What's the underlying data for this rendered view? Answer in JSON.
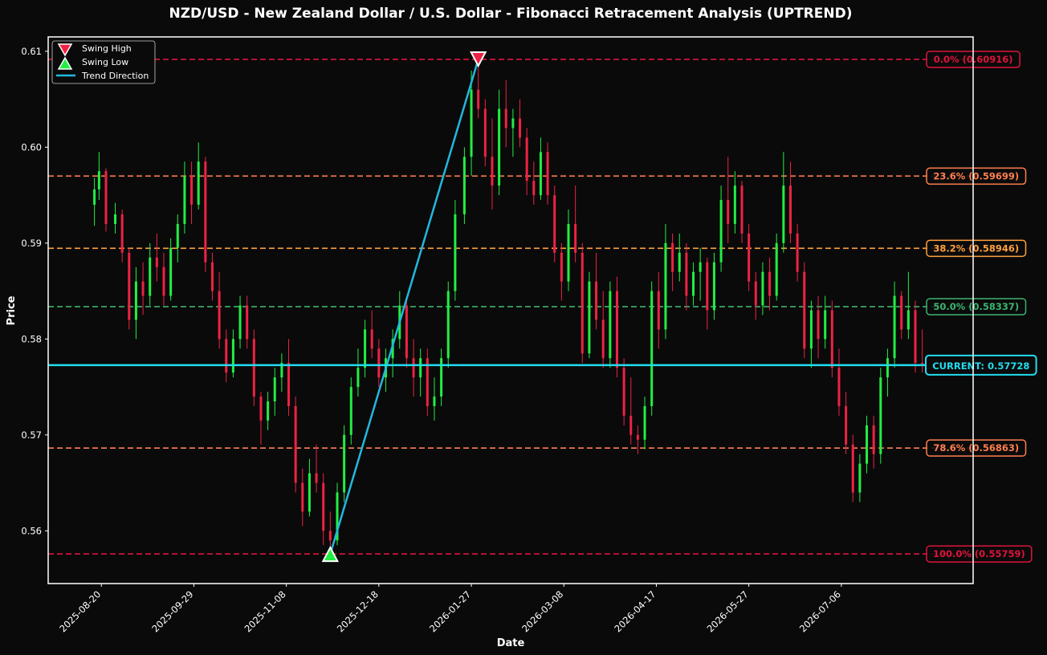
{
  "chart_data": {
    "type": "candlestick",
    "title": "NZD/USD - New Zealand Dollar / U.S. Dollar - Fibonacci Retracement Analysis (UPTREND)",
    "xlabel": "Date",
    "ylabel": "Price",
    "ylim": [
      0.5545,
      0.6115
    ],
    "xlim": [
      "2025-07-28",
      "2026-09-01"
    ],
    "y_ticks": [
      0.56,
      0.57,
      0.58,
      0.59,
      0.6,
      0.61
    ],
    "x_ticks": [
      "2025-08-20",
      "2025-09-29",
      "2025-11-08",
      "2025-12-18",
      "2026-01-27",
      "2026-03-08",
      "2026-04-17",
      "2026-05-27",
      "2026-07-06"
    ],
    "colors": {
      "up": "#22ee44",
      "down": "#ee2244",
      "trend": "#22b8dd",
      "current": "#22ddee",
      "background": "#0a0a0a",
      "frame": "#ffffff"
    },
    "fib_levels": [
      {
        "label": "0.0% (0.60916)",
        "value": 0.60916,
        "color": "#dc143c"
      },
      {
        "label": "23.6% (0.59699)",
        "value": 0.59699,
        "color": "#ff7f50"
      },
      {
        "label": "38.2% (0.58946)",
        "value": 0.58946,
        "color": "#ffa040"
      },
      {
        "label": "50.0% (0.58337)",
        "value": 0.58337,
        "color": "#3cb371"
      },
      {
        "label": "78.6% (0.56863)",
        "value": 0.56863,
        "color": "#ff7f50"
      },
      {
        "label": "100.0% (0.55759)",
        "value": 0.55759,
        "color": "#dc143c"
      }
    ],
    "current": {
      "label": "CURRENT: 0.57728",
      "value": 0.57728
    },
    "swing_high": {
      "date": "2026-01-30",
      "value": 0.60916
    },
    "swing_low": {
      "date": "2025-11-27",
      "value": 0.55759
    },
    "legend": {
      "position": "top-left",
      "items": [
        {
          "label": "Swing High",
          "marker": "triangle-down"
        },
        {
          "label": "Swing Low",
          "marker": "triangle-up"
        },
        {
          "label": "Trend Direction",
          "marker": "line"
        }
      ]
    },
    "ohlc": [
      [
        "2025-08-17",
        0.594,
        0.5968,
        0.5918,
        0.5956
      ],
      [
        "2025-08-19",
        0.5956,
        0.5995,
        0.5945,
        0.5975
      ],
      [
        "2025-08-22",
        0.5975,
        0.5978,
        0.5912,
        0.592
      ],
      [
        "2025-08-26",
        0.592,
        0.5942,
        0.591,
        0.593
      ],
      [
        "2025-08-29",
        0.593,
        0.5935,
        0.588,
        0.589
      ],
      [
        "2025-09-01",
        0.589,
        0.5895,
        0.581,
        0.582
      ],
      [
        "2025-09-04",
        0.582,
        0.5875,
        0.58,
        0.586
      ],
      [
        "2025-09-07",
        0.586,
        0.588,
        0.5825,
        0.5845
      ],
      [
        "2025-09-10",
        0.5845,
        0.59,
        0.5835,
        0.5885
      ],
      [
        "2025-09-13",
        0.5885,
        0.591,
        0.586,
        0.5875
      ],
      [
        "2025-09-16",
        0.5875,
        0.589,
        0.5835,
        0.5845
      ],
      [
        "2025-09-19",
        0.5845,
        0.5905,
        0.584,
        0.5895
      ],
      [
        "2025-09-22",
        0.5895,
        0.593,
        0.588,
        0.592
      ],
      [
        "2025-09-25",
        0.592,
        0.5985,
        0.591,
        0.597
      ],
      [
        "2025-09-28",
        0.597,
        0.5985,
        0.592,
        0.594
      ],
      [
        "2025-10-01",
        0.594,
        0.6005,
        0.5935,
        0.5985
      ],
      [
        "2025-10-04",
        0.5985,
        0.599,
        0.587,
        0.588
      ],
      [
        "2025-10-07",
        0.588,
        0.589,
        0.584,
        0.585
      ],
      [
        "2025-10-10",
        0.585,
        0.587,
        0.579,
        0.58
      ],
      [
        "2025-10-13",
        0.58,
        0.581,
        0.5755,
        0.5765
      ],
      [
        "2025-10-16",
        0.5765,
        0.581,
        0.576,
        0.58
      ],
      [
        "2025-10-19",
        0.58,
        0.5845,
        0.579,
        0.5835
      ],
      [
        "2025-10-22",
        0.5835,
        0.5845,
        0.579,
        0.58
      ],
      [
        "2025-10-25",
        0.58,
        0.581,
        0.573,
        0.574
      ],
      [
        "2025-10-28",
        0.574,
        0.5745,
        0.569,
        0.5715
      ],
      [
        "2025-10-31",
        0.5715,
        0.5745,
        0.5705,
        0.5735
      ],
      [
        "2025-11-03",
        0.5735,
        0.577,
        0.572,
        0.576
      ],
      [
        "2025-11-06",
        0.576,
        0.5785,
        0.5745,
        0.5775
      ],
      [
        "2025-11-09",
        0.5775,
        0.58,
        0.572,
        0.573
      ],
      [
        "2025-11-12",
        0.573,
        0.574,
        0.564,
        0.565
      ],
      [
        "2025-11-15",
        0.565,
        0.5665,
        0.5605,
        0.562
      ],
      [
        "2025-11-18",
        0.562,
        0.5675,
        0.5615,
        0.566
      ],
      [
        "2025-11-21",
        0.566,
        0.569,
        0.564,
        0.565
      ],
      [
        "2025-11-24",
        0.565,
        0.566,
        0.5585,
        0.56
      ],
      [
        "2025-11-27",
        0.56,
        0.562,
        0.5576,
        0.559
      ],
      [
        "2025-11-30",
        0.559,
        0.565,
        0.5585,
        0.564
      ],
      [
        "2025-12-03",
        0.564,
        0.571,
        0.563,
        0.57
      ],
      [
        "2025-12-06",
        0.57,
        0.576,
        0.569,
        0.575
      ],
      [
        "2025-12-09",
        0.575,
        0.579,
        0.574,
        0.577
      ],
      [
        "2025-12-12",
        0.577,
        0.582,
        0.576,
        0.581
      ],
      [
        "2025-12-15",
        0.581,
        0.583,
        0.578,
        0.579
      ],
      [
        "2025-12-18",
        0.579,
        0.58,
        0.575,
        0.576
      ],
      [
        "2025-12-21",
        0.576,
        0.579,
        0.5745,
        0.578
      ],
      [
        "2025-12-24",
        0.578,
        0.581,
        0.576,
        0.58
      ],
      [
        "2025-12-27",
        0.58,
        0.585,
        0.579,
        0.5835
      ],
      [
        "2025-12-30",
        0.5835,
        0.584,
        0.577,
        0.578
      ],
      [
        "2026-01-02",
        0.578,
        0.58,
        0.574,
        0.576
      ],
      [
        "2026-01-05",
        0.576,
        0.579,
        0.574,
        0.578
      ],
      [
        "2026-01-08",
        0.578,
        0.579,
        0.572,
        0.573
      ],
      [
        "2026-01-11",
        0.573,
        0.576,
        0.5715,
        0.574
      ],
      [
        "2026-01-14",
        0.574,
        0.579,
        0.573,
        0.578
      ],
      [
        "2026-01-17",
        0.578,
        0.586,
        0.577,
        0.585
      ],
      [
        "2026-01-20",
        0.585,
        0.5945,
        0.584,
        0.593
      ],
      [
        "2026-01-24",
        0.593,
        0.6,
        0.592,
        0.599
      ],
      [
        "2026-01-27",
        0.599,
        0.608,
        0.597,
        0.606
      ],
      [
        "2026-01-30",
        0.606,
        0.6092,
        0.603,
        0.604
      ],
      [
        "2026-02-02",
        0.604,
        0.605,
        0.598,
        0.599
      ],
      [
        "2026-02-05",
        0.599,
        0.603,
        0.5935,
        0.596
      ],
      [
        "2026-02-08",
        0.596,
        0.606,
        0.595,
        0.604
      ],
      [
        "2026-02-11",
        0.604,
        0.607,
        0.6,
        0.602
      ],
      [
        "2026-02-14",
        0.602,
        0.604,
        0.599,
        0.603
      ],
      [
        "2026-02-17",
        0.603,
        0.605,
        0.6,
        0.601
      ],
      [
        "2026-02-20",
        0.601,
        0.602,
        0.595,
        0.5965
      ],
      [
        "2026-02-23",
        0.5965,
        0.5985,
        0.594,
        0.595
      ],
      [
        "2026-02-26",
        0.595,
        0.601,
        0.5945,
        0.5995
      ],
      [
        "2026-03-01",
        0.5995,
        0.6005,
        0.594,
        0.595
      ],
      [
        "2026-03-04",
        0.595,
        0.596,
        0.588,
        0.589
      ],
      [
        "2026-03-07",
        0.589,
        0.59,
        0.584,
        0.586
      ],
      [
        "2026-03-10",
        0.586,
        0.5935,
        0.585,
        0.592
      ],
      [
        "2026-03-13",
        0.592,
        0.596,
        0.588,
        0.589
      ],
      [
        "2026-03-16",
        0.589,
        0.59,
        0.5775,
        0.5785
      ],
      [
        "2026-03-19",
        0.5785,
        0.587,
        0.578,
        0.586
      ],
      [
        "2026-03-22",
        0.586,
        0.589,
        0.581,
        0.582
      ],
      [
        "2026-03-25",
        0.582,
        0.585,
        0.577,
        0.578
      ],
      [
        "2026-03-28",
        0.578,
        0.586,
        0.577,
        0.585
      ],
      [
        "2026-03-31",
        0.585,
        0.5865,
        0.576,
        0.577
      ],
      [
        "2026-04-03",
        0.577,
        0.578,
        0.571,
        0.572
      ],
      [
        "2026-04-06",
        0.572,
        0.576,
        0.569,
        0.57
      ],
      [
        "2026-04-09",
        0.57,
        0.571,
        0.568,
        0.5695
      ],
      [
        "2026-04-12",
        0.5695,
        0.574,
        0.5685,
        0.573
      ],
      [
        "2026-04-15",
        0.573,
        0.586,
        0.572,
        0.585
      ],
      [
        "2026-04-18",
        0.585,
        0.587,
        0.579,
        0.581
      ],
      [
        "2026-04-21",
        0.581,
        0.592,
        0.58,
        0.59
      ],
      [
        "2026-04-24",
        0.59,
        0.591,
        0.585,
        0.587
      ],
      [
        "2026-04-27",
        0.587,
        0.591,
        0.586,
        0.589
      ],
      [
        "2026-04-30",
        0.589,
        0.59,
        0.583,
        0.5845
      ],
      [
        "2026-05-03",
        0.5845,
        0.588,
        0.5835,
        0.587
      ],
      [
        "2026-05-06",
        0.587,
        0.5895,
        0.584,
        0.588
      ],
      [
        "2026-05-09",
        0.588,
        0.5885,
        0.581,
        0.583
      ],
      [
        "2026-05-12",
        0.583,
        0.589,
        0.582,
        0.588
      ],
      [
        "2026-05-15",
        0.588,
        0.596,
        0.587,
        0.5945
      ],
      [
        "2026-05-18",
        0.5945,
        0.599,
        0.59,
        0.592
      ],
      [
        "2026-05-21",
        0.592,
        0.5975,
        0.591,
        0.596
      ],
      [
        "2026-05-24",
        0.596,
        0.5965,
        0.59,
        0.591
      ],
      [
        "2026-05-27",
        0.591,
        0.592,
        0.585,
        0.586
      ],
      [
        "2026-05-30",
        0.586,
        0.587,
        0.582,
        0.5835
      ],
      [
        "2026-06-02",
        0.5835,
        0.588,
        0.5825,
        0.587
      ],
      [
        "2026-06-05",
        0.587,
        0.5885,
        0.583,
        0.5845
      ],
      [
        "2026-06-08",
        0.5845,
        0.591,
        0.584,
        0.59
      ],
      [
        "2026-06-11",
        0.59,
        0.5995,
        0.589,
        0.596
      ],
      [
        "2026-06-14",
        0.596,
        0.5985,
        0.59,
        0.591
      ],
      [
        "2026-06-17",
        0.591,
        0.592,
        0.586,
        0.587
      ],
      [
        "2026-06-20",
        0.587,
        0.588,
        0.578,
        0.579
      ],
      [
        "2026-06-23",
        0.579,
        0.584,
        0.577,
        0.583
      ],
      [
        "2026-06-26",
        0.583,
        0.5845,
        0.578,
        0.58
      ],
      [
        "2026-06-29",
        0.58,
        0.5845,
        0.579,
        0.583
      ],
      [
        "2026-07-02",
        0.583,
        0.584,
        0.576,
        0.577
      ],
      [
        "2026-07-05",
        0.577,
        0.579,
        0.572,
        0.573
      ],
      [
        "2026-07-08",
        0.573,
        0.5745,
        0.568,
        0.569
      ],
      [
        "2026-07-11",
        0.569,
        0.57,
        0.563,
        0.564
      ],
      [
        "2026-07-14",
        0.564,
        0.568,
        0.563,
        0.567
      ],
      [
        "2026-07-17",
        0.567,
        0.572,
        0.566,
        0.571
      ],
      [
        "2026-07-20",
        0.571,
        0.572,
        0.5665,
        0.568
      ],
      [
        "2026-07-23",
        0.568,
        0.577,
        0.567,
        0.576
      ],
      [
        "2026-07-26",
        0.576,
        0.579,
        0.574,
        0.578
      ],
      [
        "2026-07-29",
        0.578,
        0.586,
        0.577,
        0.5845
      ],
      [
        "2026-08-01",
        0.5845,
        0.585,
        0.58,
        0.581
      ],
      [
        "2026-08-04",
        0.581,
        0.587,
        0.58,
        0.583
      ],
      [
        "2026-08-07",
        0.583,
        0.584,
        0.5765,
        0.5775
      ],
      [
        "2026-08-10",
        0.5775,
        0.581,
        0.5765,
        0.5773
      ]
    ]
  }
}
